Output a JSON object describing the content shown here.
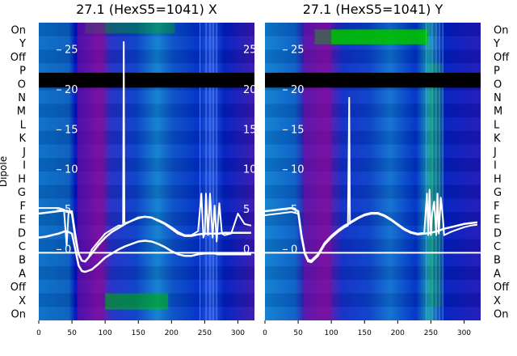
{
  "chart_data": [
    {
      "type": "heatmap",
      "title": "27.1 (HexS5=1041) X",
      "ylabel": "Dipole",
      "x_ticks": [
        0,
        50,
        100,
        150,
        200,
        250,
        300
      ],
      "xlim": [
        0,
        325
      ],
      "row_labels_top_to_bottom": [
        "On",
        "Y",
        "Off",
        "P",
        "O",
        "N",
        "M",
        "L",
        "K",
        "J",
        "I",
        "H",
        "G",
        "F",
        "E",
        "D",
        "C",
        "B",
        "A",
        "Off",
        "X",
        "On"
      ],
      "inner_y_ticks": [
        25,
        20,
        15,
        10,
        5,
        0
      ],
      "inner_ylim": [
        -3,
        27
      ],
      "dark_row": "O",
      "divider_between": [
        "C",
        "B"
      ],
      "colors": {
        "heat_low": "#0010c0",
        "heat_mid": "#1a8fd0",
        "heat_high": "#00c000",
        "band": "#7a0fa0",
        "line": "#ffffff",
        "dark": "#000000"
      },
      "series": [
        {
          "values_x": [
            0,
            10,
            20,
            30,
            38,
            42,
            45,
            50,
            55,
            60,
            65,
            70,
            75,
            80,
            90,
            100,
            110,
            120,
            127,
            128,
            129,
            130,
            140,
            150,
            160,
            170,
            180,
            190,
            200,
            210,
            220,
            230,
            240,
            245,
            248,
            250,
            252,
            255,
            258,
            262,
            265,
            268,
            272,
            276,
            280,
            290,
            300,
            310,
            320
          ],
          "values_y": [
            5.2,
            5.2,
            5.2,
            5.2,
            5.0,
            0.5,
            4.8,
            4.8,
            2.0,
            -0.5,
            -1.4,
            -1.5,
            -1.0,
            0.0,
            1.0,
            2.0,
            2.5,
            3.0,
            3.0,
            26.0,
            3.5,
            3.3,
            3.6,
            3.9,
            4.1,
            4.0,
            3.7,
            3.3,
            2.8,
            2.2,
            1.8,
            1.8,
            2.3,
            7.0,
            1.5,
            2.0,
            7.0,
            1.8,
            7.0,
            1.5,
            5.5,
            1.0,
            5.8,
            2.0,
            1.8,
            2.0,
            4.5,
            3.2,
            3.0
          ]
        },
        {
          "values_x": [
            0,
            10,
            20,
            30,
            40,
            45,
            50,
            55,
            60,
            65,
            70,
            80,
            90,
            100,
            110,
            120,
            130,
            140,
            150,
            160,
            170,
            180,
            190,
            200,
            210,
            220,
            230,
            240,
            250,
            260,
            270,
            280,
            290,
            300,
            310,
            320
          ],
          "values_y": [
            4.5,
            4.6,
            4.7,
            4.8,
            4.9,
            4.8,
            4.5,
            1.5,
            -0.6,
            -1.4,
            -1.5,
            -0.5,
            0.6,
            1.5,
            2.2,
            2.7,
            3.2,
            3.6,
            4.0,
            4.1,
            4.0,
            3.6,
            3.2,
            2.6,
            2.0,
            1.7,
            1.7,
            1.9,
            2.0,
            2.0,
            2.0,
            2.1,
            2.1,
            2.1,
            2.1,
            2.1
          ]
        },
        {
          "values_x": [
            0,
            10,
            20,
            30,
            40,
            45,
            50,
            55,
            60,
            65,
            70,
            80,
            90,
            100,
            110,
            120,
            130,
            140,
            150,
            160,
            170,
            180,
            190,
            200,
            210,
            220,
            230,
            240,
            250,
            255,
            260,
            265,
            270,
            280,
            290,
            300,
            310,
            320
          ],
          "values_y": [
            1.5,
            1.6,
            1.8,
            2.0,
            2.3,
            2.2,
            2.0,
            0.0,
            -2.0,
            -2.7,
            -2.8,
            -2.5,
            -1.8,
            -1.0,
            -0.5,
            0.0,
            0.4,
            0.7,
            1.0,
            1.1,
            1.0,
            0.7,
            0.3,
            -0.2,
            -0.6,
            -0.8,
            -0.8,
            -0.6,
            -0.5,
            -0.5,
            -0.5,
            -0.5,
            -0.6,
            -0.6,
            -0.6,
            -0.6,
            -0.6,
            -0.6
          ]
        }
      ]
    },
    {
      "type": "heatmap",
      "title": "27.1 (HexS5=1041) Y",
      "ylabel": "",
      "x_ticks": [
        0,
        50,
        100,
        150,
        200,
        250,
        300
      ],
      "xlim": [
        0,
        325
      ],
      "row_labels_top_to_bottom": [
        "On",
        "Y",
        "Off",
        "P",
        "O",
        "N",
        "M",
        "L",
        "K",
        "J",
        "I",
        "H",
        "G",
        "F",
        "E",
        "D",
        "C",
        "B",
        "A",
        "Off",
        "X",
        "On"
      ],
      "inner_y_ticks": [
        25,
        20,
        15,
        10,
        5,
        0
      ],
      "inner_ylim": [
        -3,
        27
      ],
      "dark_row": "O",
      "divider_between": [
        "C",
        "B"
      ],
      "colors": {
        "heat_low": "#0010c0",
        "heat_mid": "#1a8fd0",
        "heat_high": "#00c000",
        "band": "#7a0fa0",
        "line": "#ffffff",
        "dark": "#000000"
      },
      "series": [
        {
          "values_x": [
            0,
            10,
            20,
            30,
            40,
            45,
            50,
            55,
            60,
            65,
            70,
            80,
            90,
            100,
            110,
            120,
            125,
            127,
            128,
            130,
            140,
            150,
            160,
            170,
            180,
            190,
            200,
            210,
            220,
            230,
            240,
            244,
            246,
            248,
            250,
            252,
            255,
            258,
            260,
            262,
            265,
            268,
            270,
            280,
            290,
            300,
            310,
            320
          ],
          "values_y": [
            4.3,
            4.4,
            4.5,
            4.6,
            4.7,
            4.6,
            4.5,
            1.5,
            -0.6,
            -1.5,
            -1.6,
            -0.8,
            0.6,
            1.5,
            2.2,
            2.8,
            3.0,
            19.0,
            3.2,
            3.5,
            4.0,
            4.4,
            4.6,
            4.6,
            4.3,
            3.8,
            3.2,
            2.6,
            2.2,
            2.0,
            2.1,
            7.0,
            1.8,
            7.5,
            1.8,
            4.5,
            6.0,
            1.8,
            7.0,
            2.0,
            6.5,
            4.0,
            1.8,
            2.2,
            2.5,
            2.8,
            3.0,
            3.1
          ]
        },
        {
          "values_x": [
            0,
            10,
            20,
            30,
            40,
            45,
            50,
            55,
            60,
            65,
            70,
            80,
            90,
            100,
            110,
            120,
            130,
            140,
            150,
            160,
            170,
            180,
            190,
            200,
            210,
            220,
            230,
            240,
            250,
            260,
            270,
            280,
            290,
            300,
            310,
            320
          ],
          "values_y": [
            4.8,
            4.9,
            5.0,
            5.1,
            5.2,
            5.0,
            4.8,
            1.8,
            -0.4,
            -1.3,
            -1.4,
            -0.6,
            0.8,
            1.7,
            2.4,
            3.0,
            3.4,
            3.9,
            4.3,
            4.5,
            4.5,
            4.2,
            3.7,
            3.1,
            2.5,
            2.1,
            1.9,
            2.0,
            2.1,
            2.3,
            2.6,
            2.8,
            3.0,
            3.2,
            3.3,
            3.4
          ]
        }
      ]
    }
  ]
}
